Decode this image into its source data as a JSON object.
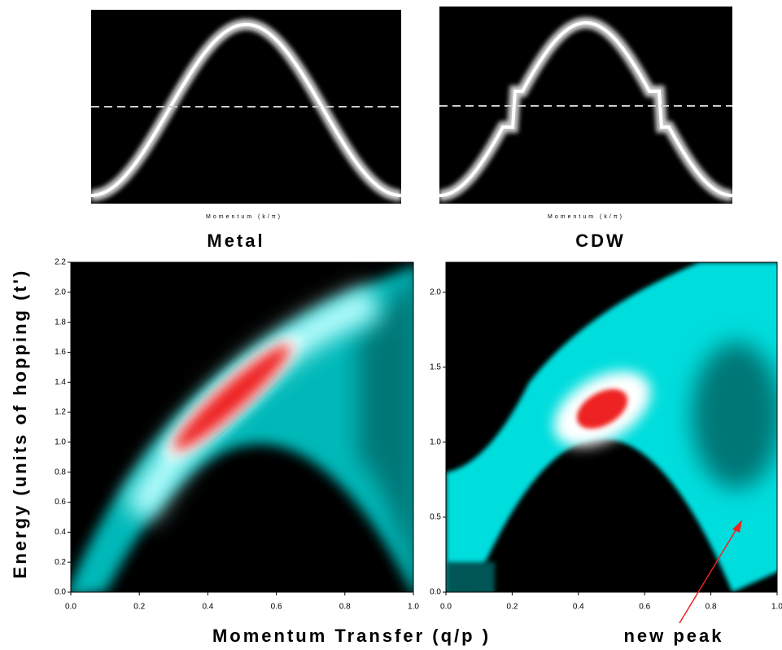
{
  "chart_data": [
    {
      "type": "band",
      "title": "Metal",
      "xlabel": "Momentum (k/π)"
    },
    {
      "type": "band",
      "title": "CDW",
      "xlabel": "Momentum (k/π)"
    },
    {
      "type": "heatmap",
      "xlim": [
        0,
        1
      ],
      "ylim": [
        0,
        2.2
      ],
      "xticks": [
        {
          "value": 0,
          "label": "0.0"
        },
        {
          "value": 0.2,
          "label": "0.2"
        },
        {
          "value": 0.4,
          "label": "0.4"
        },
        {
          "value": 0.6,
          "label": "0.6"
        },
        {
          "value": 0.8,
          "label": "0.8"
        },
        {
          "value": 1,
          "label": "1.0"
        }
      ],
      "yticks": [
        {
          "value": 0,
          "label": "0.0"
        },
        {
          "value": 0.2,
          "label": "0.2"
        },
        {
          "value": 0.4,
          "label": "0.4"
        },
        {
          "value": 0.6,
          "label": "0.6"
        },
        {
          "value": 0.8,
          "label": "0.8"
        },
        {
          "value": 1,
          "label": "1.0"
        },
        {
          "value": 1.2,
          "label": "1.2"
        },
        {
          "value": 1.4,
          "label": "1.4"
        },
        {
          "value": 1.6,
          "label": "1.6"
        },
        {
          "value": 1.8,
          "label": "1.8"
        },
        {
          "value": 2,
          "label": "2.0"
        },
        {
          "value": 2.2,
          "label": "2.2"
        }
      ]
    },
    {
      "type": "heatmap",
      "xlim": [
        0,
        1
      ],
      "ylim": [
        0,
        2.2
      ],
      "xticks": [
        {
          "value": 0,
          "label": "0.0"
        },
        {
          "value": 0.2,
          "label": "0.2"
        },
        {
          "value": 0.4,
          "label": "0.4"
        },
        {
          "value": 0.6,
          "label": "0.6"
        },
        {
          "value": 0.8,
          "label": "0.8"
        },
        {
          "value": 1,
          "label": "1.0"
        }
      ],
      "yticks": [
        {
          "value": 0,
          "label": "0.0"
        },
        {
          "value": 0.5,
          "label": "0.5"
        },
        {
          "value": 1,
          "label": "1.0"
        },
        {
          "value": 1.5,
          "label": "1.5"
        },
        {
          "value": 2,
          "label": "2.0"
        }
      ]
    }
  ],
  "figure": {
    "ylabel": "Energy (units of hopping (t')",
    "xlabel": "Momentum Transfer (q/p )",
    "annotation": "new peak"
  }
}
